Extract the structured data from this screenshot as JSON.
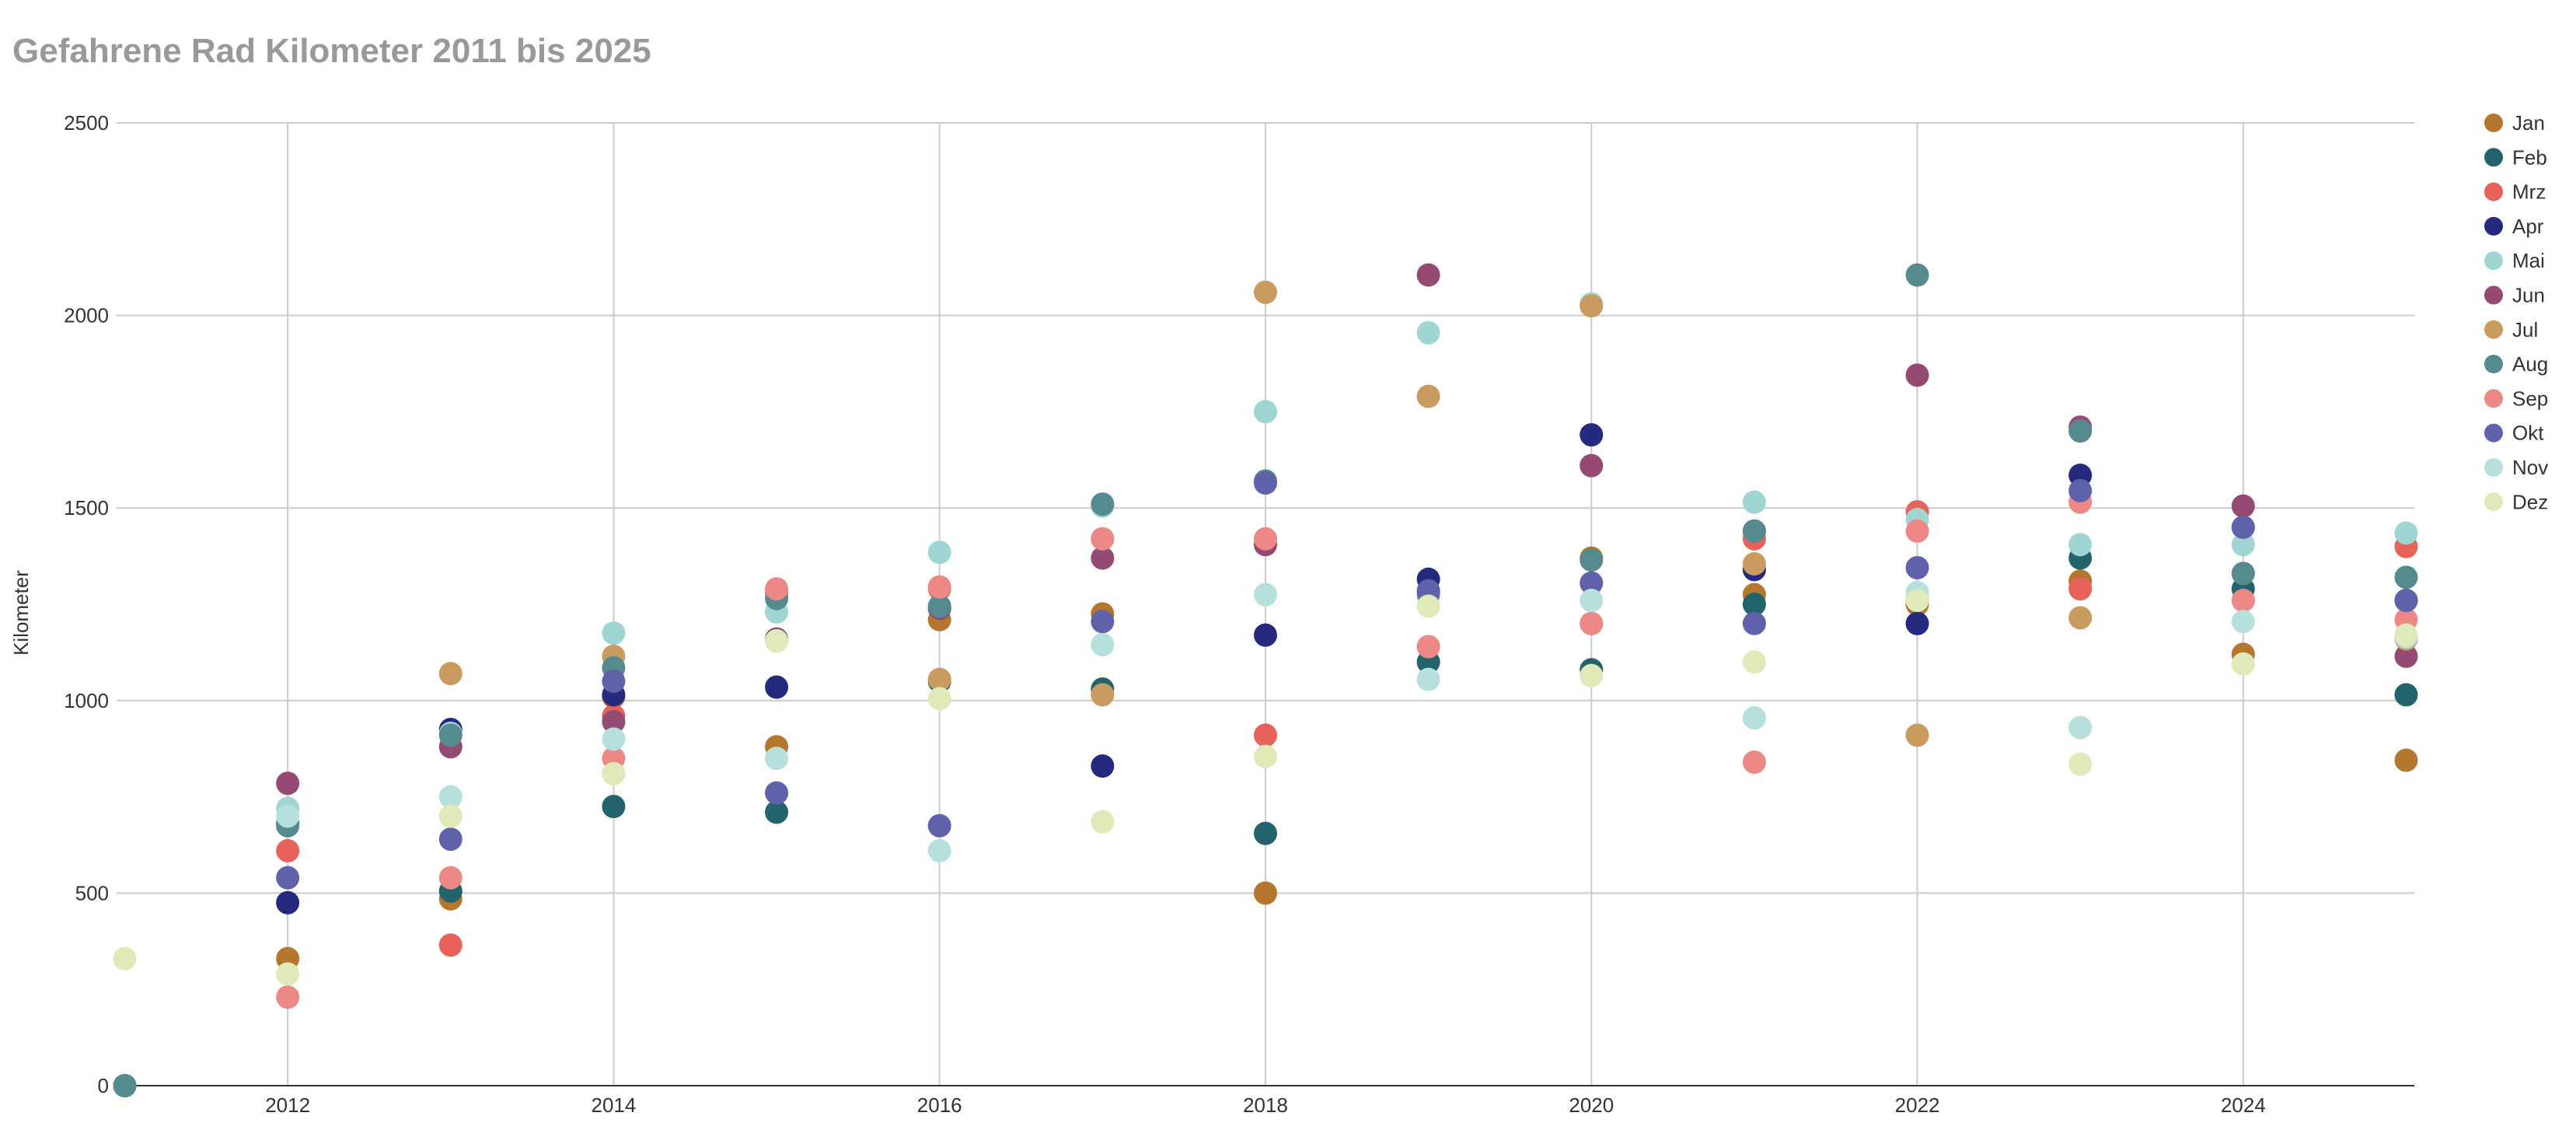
{
  "chart_data": {
    "type": "scatter",
    "title": "Gefahrene Rad Kilometer 2011 bis 2025",
    "xlabel": "",
    "ylabel": "Kilometer",
    "xlim": [
      2010.95,
      2025.05
    ],
    "ylim": [
      0,
      2500
    ],
    "xticks": [
      2012,
      2014,
      2016,
      2018,
      2020,
      2022,
      2024
    ],
    "yticks": [
      0,
      500,
      1000,
      1500,
      2000,
      2500
    ],
    "grid": true,
    "legend_position": "right",
    "x": [
      2011,
      2012,
      2013,
      2014,
      2015,
      2016,
      2017,
      2018,
      2019,
      2020,
      2021,
      2022,
      2023,
      2024,
      2025
    ],
    "series": [
      {
        "name": "Jan",
        "color": "#b5762d",
        "values": [
          null,
          330,
          485,
          1010,
          880,
          1210,
          1225,
          500,
          1100,
          1370,
          1275,
          1250,
          1310,
          1120,
          845
        ]
      },
      {
        "name": "Feb",
        "color": "#23636c",
        "values": [
          0,
          680,
          505,
          725,
          710,
          1050,
          1030,
          655,
          1100,
          1080,
          1250,
          1260,
          1370,
          1290,
          1015
        ]
      },
      {
        "name": "Mrz",
        "color": "#e8625c",
        "values": [
          null,
          610,
          365,
          960,
          1280,
          1290,
          1420,
          910,
          1140,
          1200,
          1420,
          1490,
          1290,
          1260,
          1400
        ]
      },
      {
        "name": "Apr",
        "color": "#262a7f",
        "values": [
          null,
          475,
          925,
          1015,
          1035,
          1240,
          830,
          1170,
          1315,
          1690,
          1340,
          1200,
          1585,
          1450,
          1260
        ]
      },
      {
        "name": "Mai",
        "color": "#9fd6d3",
        "values": [
          null,
          720,
          915,
          1175,
          1230,
          1385,
          1505,
          1750,
          1955,
          2030,
          1515,
          1470,
          1405,
          1405,
          1435
        ]
      },
      {
        "name": "Jun",
        "color": "#954a74",
        "values": [
          null,
          785,
          880,
          945,
          1160,
          1240,
          1370,
          1405,
          2105,
          1610,
          1440,
          1845,
          1710,
          1505,
          1115
        ]
      },
      {
        "name": "Jul",
        "color": "#c99b5f",
        "values": [
          null,
          null,
          1070,
          1115,
          1155,
          1055,
          1015,
          2060,
          1790,
          2025,
          1355,
          910,
          1215,
          1330,
          1160
        ]
      },
      {
        "name": "Aug",
        "color": "#558a8f",
        "values": [
          0,
          675,
          910,
          1085,
          1265,
          1245,
          1510,
          1570,
          1275,
          1365,
          1440,
          2105,
          1700,
          1330,
          1320
        ]
      },
      {
        "name": "Sep",
        "color": "#ec8886",
        "values": [
          null,
          230,
          540,
          850,
          1290,
          1295,
          1420,
          1420,
          1140,
          1200,
          840,
          1440,
          1515,
          1260,
          1210
        ]
      },
      {
        "name": "Okt",
        "color": "#5f62ab",
        "values": [
          null,
          540,
          640,
          1050,
          760,
          675,
          1205,
          1565,
          1285,
          1305,
          1200,
          1345,
          1545,
          1450,
          1260
        ]
      },
      {
        "name": "Nov",
        "color": "#b5e0dc",
        "values": [
          null,
          700,
          750,
          900,
          850,
          610,
          1145,
          1275,
          1055,
          1260,
          955,
          1280,
          930,
          1205,
          1165
        ]
      },
      {
        "name": "Dez",
        "color": "#e0e9b8",
        "values": [
          330,
          290,
          700,
          810,
          1155,
          1005,
          685,
          855,
          1245,
          1065,
          1100,
          1260,
          835,
          1095,
          1170
        ]
      }
    ]
  }
}
